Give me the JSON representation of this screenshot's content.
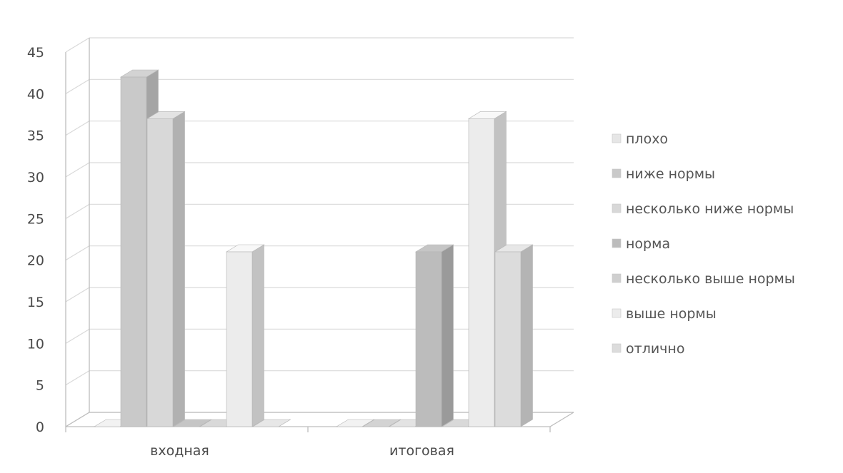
{
  "chart_data": {
    "type": "bar",
    "variant": "3d-clustered-column",
    "categories": [
      "входная",
      "итоговая"
    ],
    "series": [
      {
        "name": "плохо",
        "values": [
          0,
          0
        ],
        "color": "#e6e6e6"
      },
      {
        "name": "ниже нормы",
        "values": [
          42,
          0
        ],
        "color": "#c9c9c9"
      },
      {
        "name": "несколько ниже нормы",
        "values": [
          37,
          0
        ],
        "color": "#d8d8d8"
      },
      {
        "name": "норма",
        "values": [
          0,
          21
        ],
        "color": "#bcbcbc"
      },
      {
        "name": "несколько выше нормы",
        "values": [
          0,
          0
        ],
        "color": "#cfcfcf"
      },
      {
        "name": "выше нормы",
        "values": [
          21,
          37
        ],
        "color": "#ececec"
      },
      {
        "name": "отлично",
        "values": [
          0,
          21
        ],
        "color": "#dcdcdc"
      }
    ],
    "y_ticks": [
      "0",
      "5",
      "10",
      "15",
      "20",
      "25",
      "30",
      "35",
      "40",
      "45"
    ],
    "ylim": [
      0,
      45
    ],
    "grid": true,
    "legend_position": "right",
    "title": "",
    "xlabel": "",
    "ylabel": ""
  }
}
